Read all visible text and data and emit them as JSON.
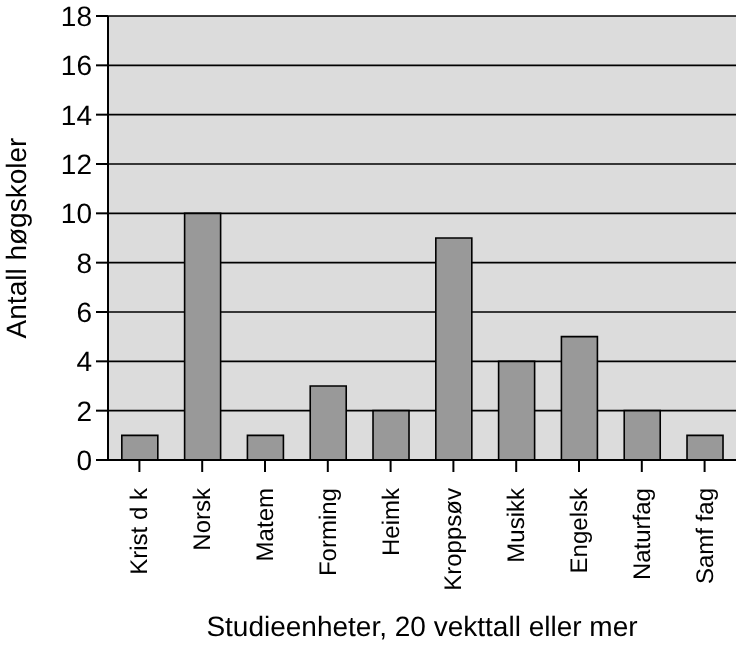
{
  "chart_data": {
    "type": "bar",
    "xlabel": "Studieenheter, 20 vekttall eller mer",
    "ylabel": "Antall høgskoler",
    "categories": [
      "Krist d k",
      "Norsk",
      "Matem",
      "Forming",
      "Heimk",
      "Kroppsøv",
      "Musikk",
      "Engelsk",
      "Naturfag",
      "Samf fag"
    ],
    "values": [
      1,
      10,
      1,
      3,
      2,
      9,
      4,
      5,
      2,
      1
    ],
    "color": "#999999",
    "ylim": [
      0,
      18
    ],
    "yticks": [
      0,
      2,
      4,
      6,
      8,
      10,
      12,
      14,
      16,
      18
    ],
    "grid": "y"
  }
}
